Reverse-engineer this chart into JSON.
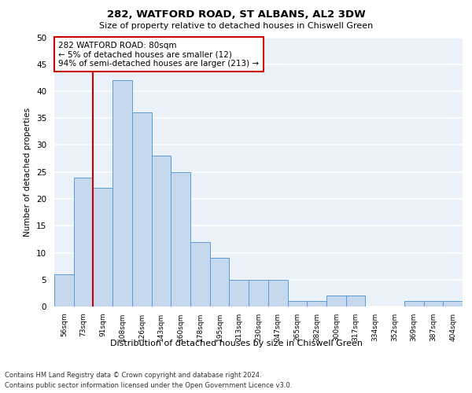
{
  "title": "282, WATFORD ROAD, ST ALBANS, AL2 3DW",
  "subtitle": "Size of property relative to detached houses in Chiswell Green",
  "xlabel": "Distribution of detached houses by size in Chiswell Green",
  "ylabel": "Number of detached properties",
  "categories": [
    "56sqm",
    "73sqm",
    "91sqm",
    "108sqm",
    "126sqm",
    "143sqm",
    "160sqm",
    "178sqm",
    "195sqm",
    "213sqm",
    "230sqm",
    "247sqm",
    "265sqm",
    "282sqm",
    "300sqm",
    "317sqm",
    "334sqm",
    "352sqm",
    "369sqm",
    "387sqm",
    "404sqm"
  ],
  "values": [
    6,
    24,
    22,
    42,
    36,
    28,
    25,
    12,
    9,
    5,
    5,
    5,
    1,
    1,
    2,
    2,
    0,
    0,
    1,
    1,
    1
  ],
  "bar_color": "#c5d8ed",
  "bar_edge_color": "#5b9bd5",
  "annotation_text": "282 WATFORD ROAD: 80sqm\n← 5% of detached houses are smaller (12)\n94% of semi-detached houses are larger (213) →",
  "annotation_box_color": "#ffffff",
  "annotation_box_edge_color": "#cc0000",
  "red_line_x": 1.5,
  "ylim": [
    0,
    50
  ],
  "yticks": [
    0,
    5,
    10,
    15,
    20,
    25,
    30,
    35,
    40,
    45,
    50
  ],
  "background_color": "#eaf1f9",
  "grid_color": "#ffffff",
  "footer_line1": "Contains HM Land Registry data © Crown copyright and database right 2024.",
  "footer_line2": "Contains public sector information licensed under the Open Government Licence v3.0."
}
